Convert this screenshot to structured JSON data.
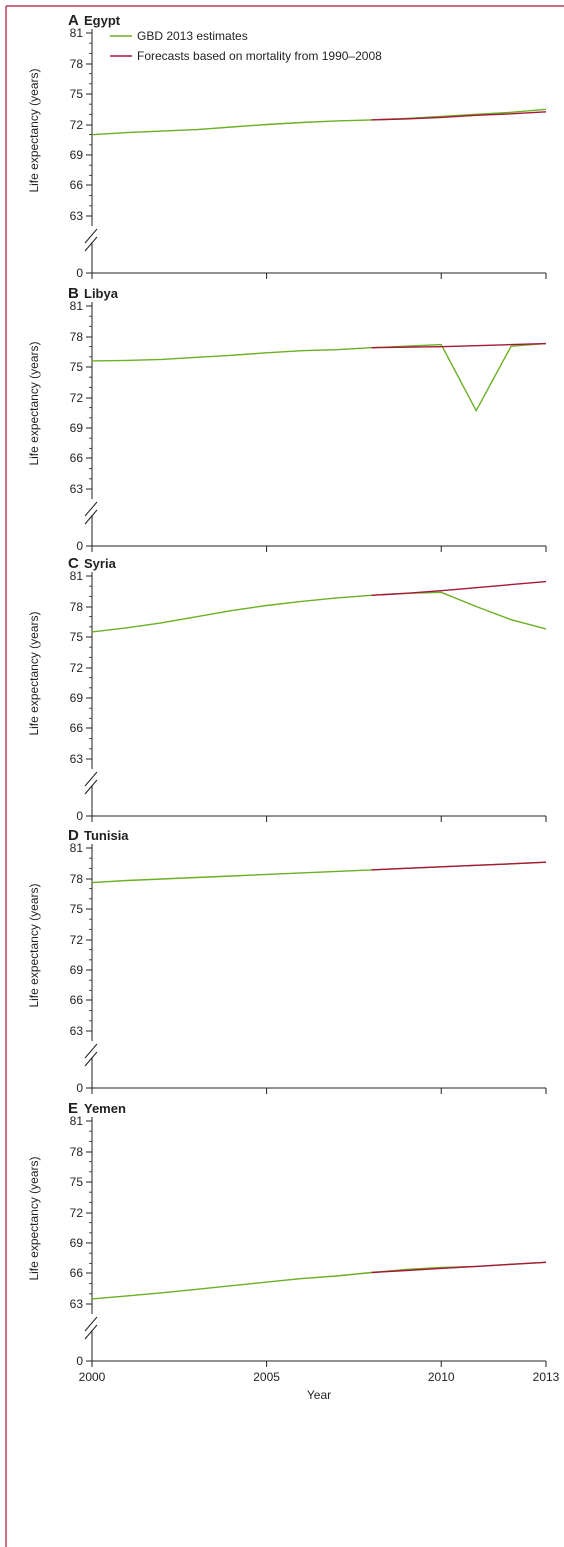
{
  "colors": {
    "estimates": "#6ab023",
    "forecast": "#a8173a",
    "border": "#a8173a",
    "axis": "#231f20"
  },
  "legend": {
    "estimates_label": "GBD 2013 estimates",
    "forecast_label": "Forecasts based on mortality from 1990–2008"
  },
  "chart_data": [
    {
      "type": "line",
      "panel_letter": "A",
      "title": "Egypt",
      "xlabel": "",
      "ylabel": "Life expectancy (years)",
      "xlim": [
        2000,
        2013
      ],
      "y_ticks": [
        0,
        63,
        66,
        69,
        72,
        75,
        78,
        81
      ],
      "y_axis_break": true,
      "series": [
        {
          "name": "GBD 2013 estimates",
          "color": "#6ab023",
          "x": [
            2000,
            2001,
            2002,
            2003,
            2004,
            2005,
            2006,
            2007,
            2008,
            2009,
            2010,
            2011,
            2012,
            2013
          ],
          "values": [
            71.0,
            71.2,
            71.35,
            71.5,
            71.75,
            72.0,
            72.2,
            72.35,
            72.45,
            72.6,
            72.8,
            73.0,
            73.2,
            73.5
          ]
        },
        {
          "name": "Forecasts based on mortality from 1990–2008",
          "color": "#a8173a",
          "x": [
            2008,
            2009,
            2010,
            2011,
            2012,
            2013
          ],
          "values": [
            72.45,
            72.55,
            72.7,
            72.9,
            73.05,
            73.25
          ]
        }
      ]
    },
    {
      "type": "line",
      "panel_letter": "B",
      "title": "Libya",
      "xlabel": "",
      "ylabel": "Life expectancy (years)",
      "xlim": [
        2000,
        2013
      ],
      "y_ticks": [
        0,
        63,
        66,
        69,
        72,
        75,
        78,
        81
      ],
      "y_axis_break": true,
      "series": [
        {
          "name": "GBD 2013 estimates",
          "color": "#6ab023",
          "x": [
            2000,
            2001,
            2002,
            2003,
            2004,
            2005,
            2006,
            2007,
            2008,
            2009,
            2010,
            2011,
            2012,
            2013
          ],
          "values": [
            75.6,
            75.65,
            75.75,
            75.95,
            76.15,
            76.4,
            76.6,
            76.7,
            76.9,
            77.05,
            77.2,
            70.7,
            77.05,
            77.3
          ]
        },
        {
          "name": "Forecasts based on mortality from 1990–2008",
          "color": "#a8173a",
          "x": [
            2008,
            2009,
            2010,
            2011,
            2012,
            2013
          ],
          "values": [
            76.9,
            76.95,
            77.0,
            77.1,
            77.2,
            77.3
          ]
        }
      ]
    },
    {
      "type": "line",
      "panel_letter": "C",
      "title": "Syria",
      "xlabel": "",
      "ylabel": "Life expectancy (years)",
      "xlim": [
        2000,
        2013
      ],
      "y_ticks": [
        0,
        63,
        66,
        69,
        72,
        75,
        78,
        81
      ],
      "y_axis_break": true,
      "series": [
        {
          "name": "GBD 2013 estimates",
          "color": "#6ab023",
          "x": [
            2000,
            2001,
            2002,
            2003,
            2004,
            2005,
            2006,
            2007,
            2008,
            2009,
            2010,
            2011,
            2012,
            2013
          ],
          "values": [
            75.5,
            75.9,
            76.4,
            77.0,
            77.6,
            78.1,
            78.5,
            78.85,
            79.1,
            79.3,
            79.4,
            78.0,
            76.7,
            75.8
          ]
        },
        {
          "name": "Forecasts based on mortality from 1990–2008",
          "color": "#a8173a",
          "x": [
            2008,
            2009,
            2010,
            2011,
            2012,
            2013
          ],
          "values": [
            79.1,
            79.3,
            79.55,
            79.85,
            80.15,
            80.45
          ]
        }
      ]
    },
    {
      "type": "line",
      "panel_letter": "D",
      "title": "Tunisia",
      "xlabel": "",
      "ylabel": "Life expectancy (years)",
      "xlim": [
        2000,
        2013
      ],
      "y_ticks": [
        0,
        63,
        66,
        69,
        72,
        75,
        78,
        81
      ],
      "y_axis_break": true,
      "series": [
        {
          "name": "GBD 2013 estimates",
          "color": "#6ab023",
          "x": [
            2000,
            2001,
            2002,
            2003,
            2004,
            2005,
            2006,
            2007,
            2008,
            2009,
            2010,
            2011,
            2012,
            2013
          ],
          "values": [
            77.6,
            77.8,
            77.95,
            78.1,
            78.25,
            78.4,
            78.55,
            78.7,
            78.85,
            79.0,
            79.15,
            79.3,
            79.45,
            79.6
          ]
        },
        {
          "name": "Forecasts based on mortality from 1990–2008",
          "color": "#a8173a",
          "x": [
            2008,
            2009,
            2010,
            2011,
            2012,
            2013
          ],
          "values": [
            78.85,
            79.0,
            79.15,
            79.3,
            79.45,
            79.6
          ]
        }
      ]
    },
    {
      "type": "line",
      "panel_letter": "E",
      "title": "Yemen",
      "xlabel": "Year",
      "ylabel": "Life expectancy (years)",
      "xlim": [
        2000,
        2013
      ],
      "x_ticks": [
        2000,
        2005,
        2010,
        2013
      ],
      "y_ticks": [
        0,
        63,
        66,
        69,
        72,
        75,
        78,
        81
      ],
      "y_axis_break": true,
      "series": [
        {
          "name": "GBD 2013 estimates",
          "color": "#6ab023",
          "x": [
            2000,
            2001,
            2002,
            2003,
            2004,
            2005,
            2006,
            2007,
            2008,
            2009,
            2010,
            2011,
            2012,
            2013
          ],
          "values": [
            63.5,
            63.8,
            64.1,
            64.45,
            64.8,
            65.15,
            65.5,
            65.75,
            66.1,
            66.4,
            66.6,
            66.7,
            66.9,
            67.1
          ]
        },
        {
          "name": "Forecasts based on mortality from 1990–2008",
          "color": "#a8173a",
          "x": [
            2008,
            2009,
            2010,
            2011,
            2012,
            2013
          ],
          "values": [
            66.1,
            66.3,
            66.5,
            66.7,
            66.9,
            67.1
          ]
        }
      ]
    }
  ]
}
